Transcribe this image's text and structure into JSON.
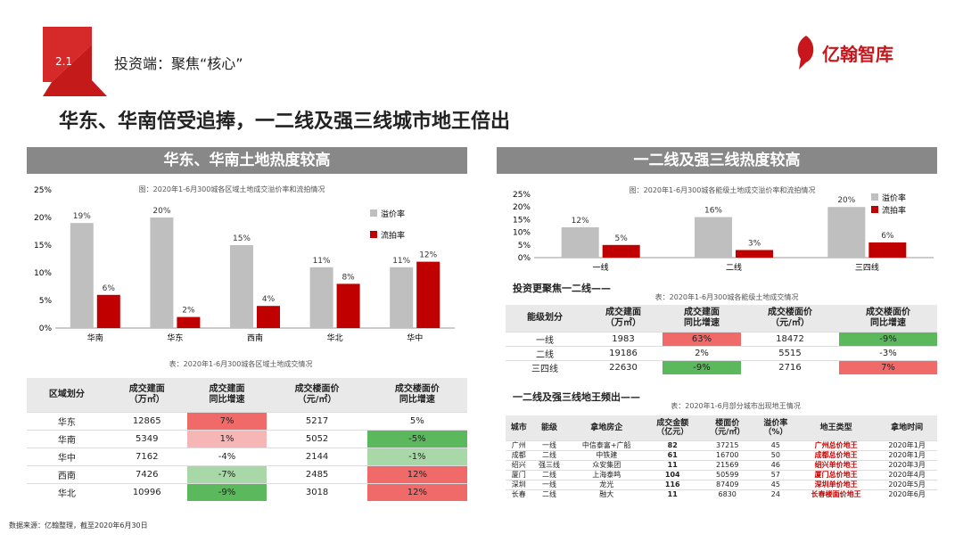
{
  "section": {
    "number": "2.1",
    "title": "投资端：聚焦“核心”"
  },
  "brand": {
    "name": "亿翰智库",
    "color": "#c8161d"
  },
  "headline": "华东、华南倍受追捧，一二线及强三线城市地王倍出",
  "left_panel": {
    "banner": "华东、华南土地热度较高",
    "chart_caption": "图：2020年1-6月300城各区域土地成交溢价率和流拍情况",
    "table_caption": "表：2020年1-6月300城各区域土地成交情况"
  },
  "right_panel": {
    "banner": "一二线及强三线热度较高",
    "chart_caption": "图：2020年1-6月300城各能级土地成交溢价率和流拍情况",
    "sub1": "投资更聚焦一二线——",
    "table1_caption": "表：2020年1-6月300城各能级土地成交情况",
    "sub2": "一二线及强三线地王频出——",
    "table2_caption": "表：2020年1-6月部分城市出现地王情况"
  },
  "chart_data": [
    {
      "type": "bar",
      "categories": [
        "华南",
        "华东",
        "西南",
        "华北",
        "华中"
      ],
      "series": [
        {
          "name": "溢价率",
          "values": [
            19,
            20,
            15,
            11,
            11
          ],
          "labels": [
            "19%",
            "20%",
            "15%",
            "11%",
            "11%"
          ],
          "color": "#bfbfbf"
        },
        {
          "name": "流拍率",
          "values": [
            6,
            2,
            4,
            8,
            12
          ],
          "labels": [
            "6%",
            "2%",
            "4%",
            "8%",
            "12%"
          ],
          "color": "#c00000"
        }
      ],
      "yticks": [
        "25%",
        "20%",
        "15%",
        "10%",
        "5%",
        "0%"
      ],
      "ylim": [
        0,
        25
      ]
    },
    {
      "type": "bar",
      "categories": [
        "一线",
        "二线",
        "三四线"
      ],
      "series": [
        {
          "name": "溢价率",
          "values": [
            12,
            16,
            20
          ],
          "labels": [
            "12%",
            "16%",
            "20%"
          ],
          "color": "#bfbfbf"
        },
        {
          "name": "流拍率",
          "values": [
            5,
            3,
            6
          ],
          "labels": [
            "5%",
            "3%",
            "6%"
          ],
          "color": "#c00000"
        }
      ],
      "yticks": [
        "25%",
        "20%",
        "15%",
        "10%",
        "5%",
        "0%"
      ],
      "ylim": [
        0,
        25
      ]
    }
  ],
  "region_table": {
    "headers": [
      "区域划分",
      "成交建面\n（万㎡）",
      "成交建面\n同比增速",
      "成交楼面价\n（元/㎡）",
      "成交楼面价\n同比增速"
    ],
    "rows": [
      [
        "华东",
        "12865",
        "7%",
        "5217",
        "5%"
      ],
      [
        "华南",
        "5349",
        "1%",
        "5052",
        "-5%"
      ],
      [
        "华中",
        "7162",
        "-4%",
        "2144",
        "-1%"
      ],
      [
        "西南",
        "7426",
        "-7%",
        "2485",
        "12%"
      ],
      [
        "华北",
        "10996",
        "-9%",
        "3018",
        "12%"
      ]
    ]
  },
  "tier_table": {
    "headers": [
      "能级划分",
      "成交建面\n（万㎡）",
      "成交建面\n同比增速",
      "成交楼面价\n（元/㎡）",
      "成交楼面价\n同比增速"
    ],
    "rows": [
      [
        "一线",
        "1983",
        "63%",
        "18472",
        "-9%"
      ],
      [
        "二线",
        "19186",
        "2%",
        "5515",
        "-3%"
      ],
      [
        "三四线",
        "22630",
        "-9%",
        "2716",
        "7%"
      ]
    ]
  },
  "dw_table": {
    "headers": [
      "城市",
      "能级",
      "拿地房企",
      "成交金额\n（亿元）",
      "楼面价\n（元/㎡）",
      "溢价率\n（%）",
      "地王类型",
      "拿地时间"
    ],
    "rows": [
      [
        "广州",
        "一线",
        "中信泰富+广船",
        "82",
        "37215",
        "45",
        "广州总价地王",
        "2020年1月"
      ],
      [
        "成都",
        "二线",
        "中铁建",
        "61",
        "16700",
        "50",
        "成都总价地王",
        "2020年1月"
      ],
      [
        "绍兴",
        "强三线",
        "众安集团",
        "11",
        "21569",
        "46",
        "绍兴单价地王",
        "2020年3月"
      ],
      [
        "厦门",
        "二线",
        "上海泰鸣",
        "104",
        "50599",
        "57",
        "厦门总价地王",
        "2020年4月"
      ],
      [
        "深圳",
        "一线",
        "龙光",
        "116",
        "87409",
        "45",
        "深圳单价地王",
        "2020年5月"
      ],
      [
        "长春",
        "二线",
        "融大",
        "11",
        "6830",
        "24",
        "长春楼面价地王",
        "2020年6月"
      ]
    ]
  },
  "footer": "数据来源：亿翰整理，截至2020年6月30日"
}
